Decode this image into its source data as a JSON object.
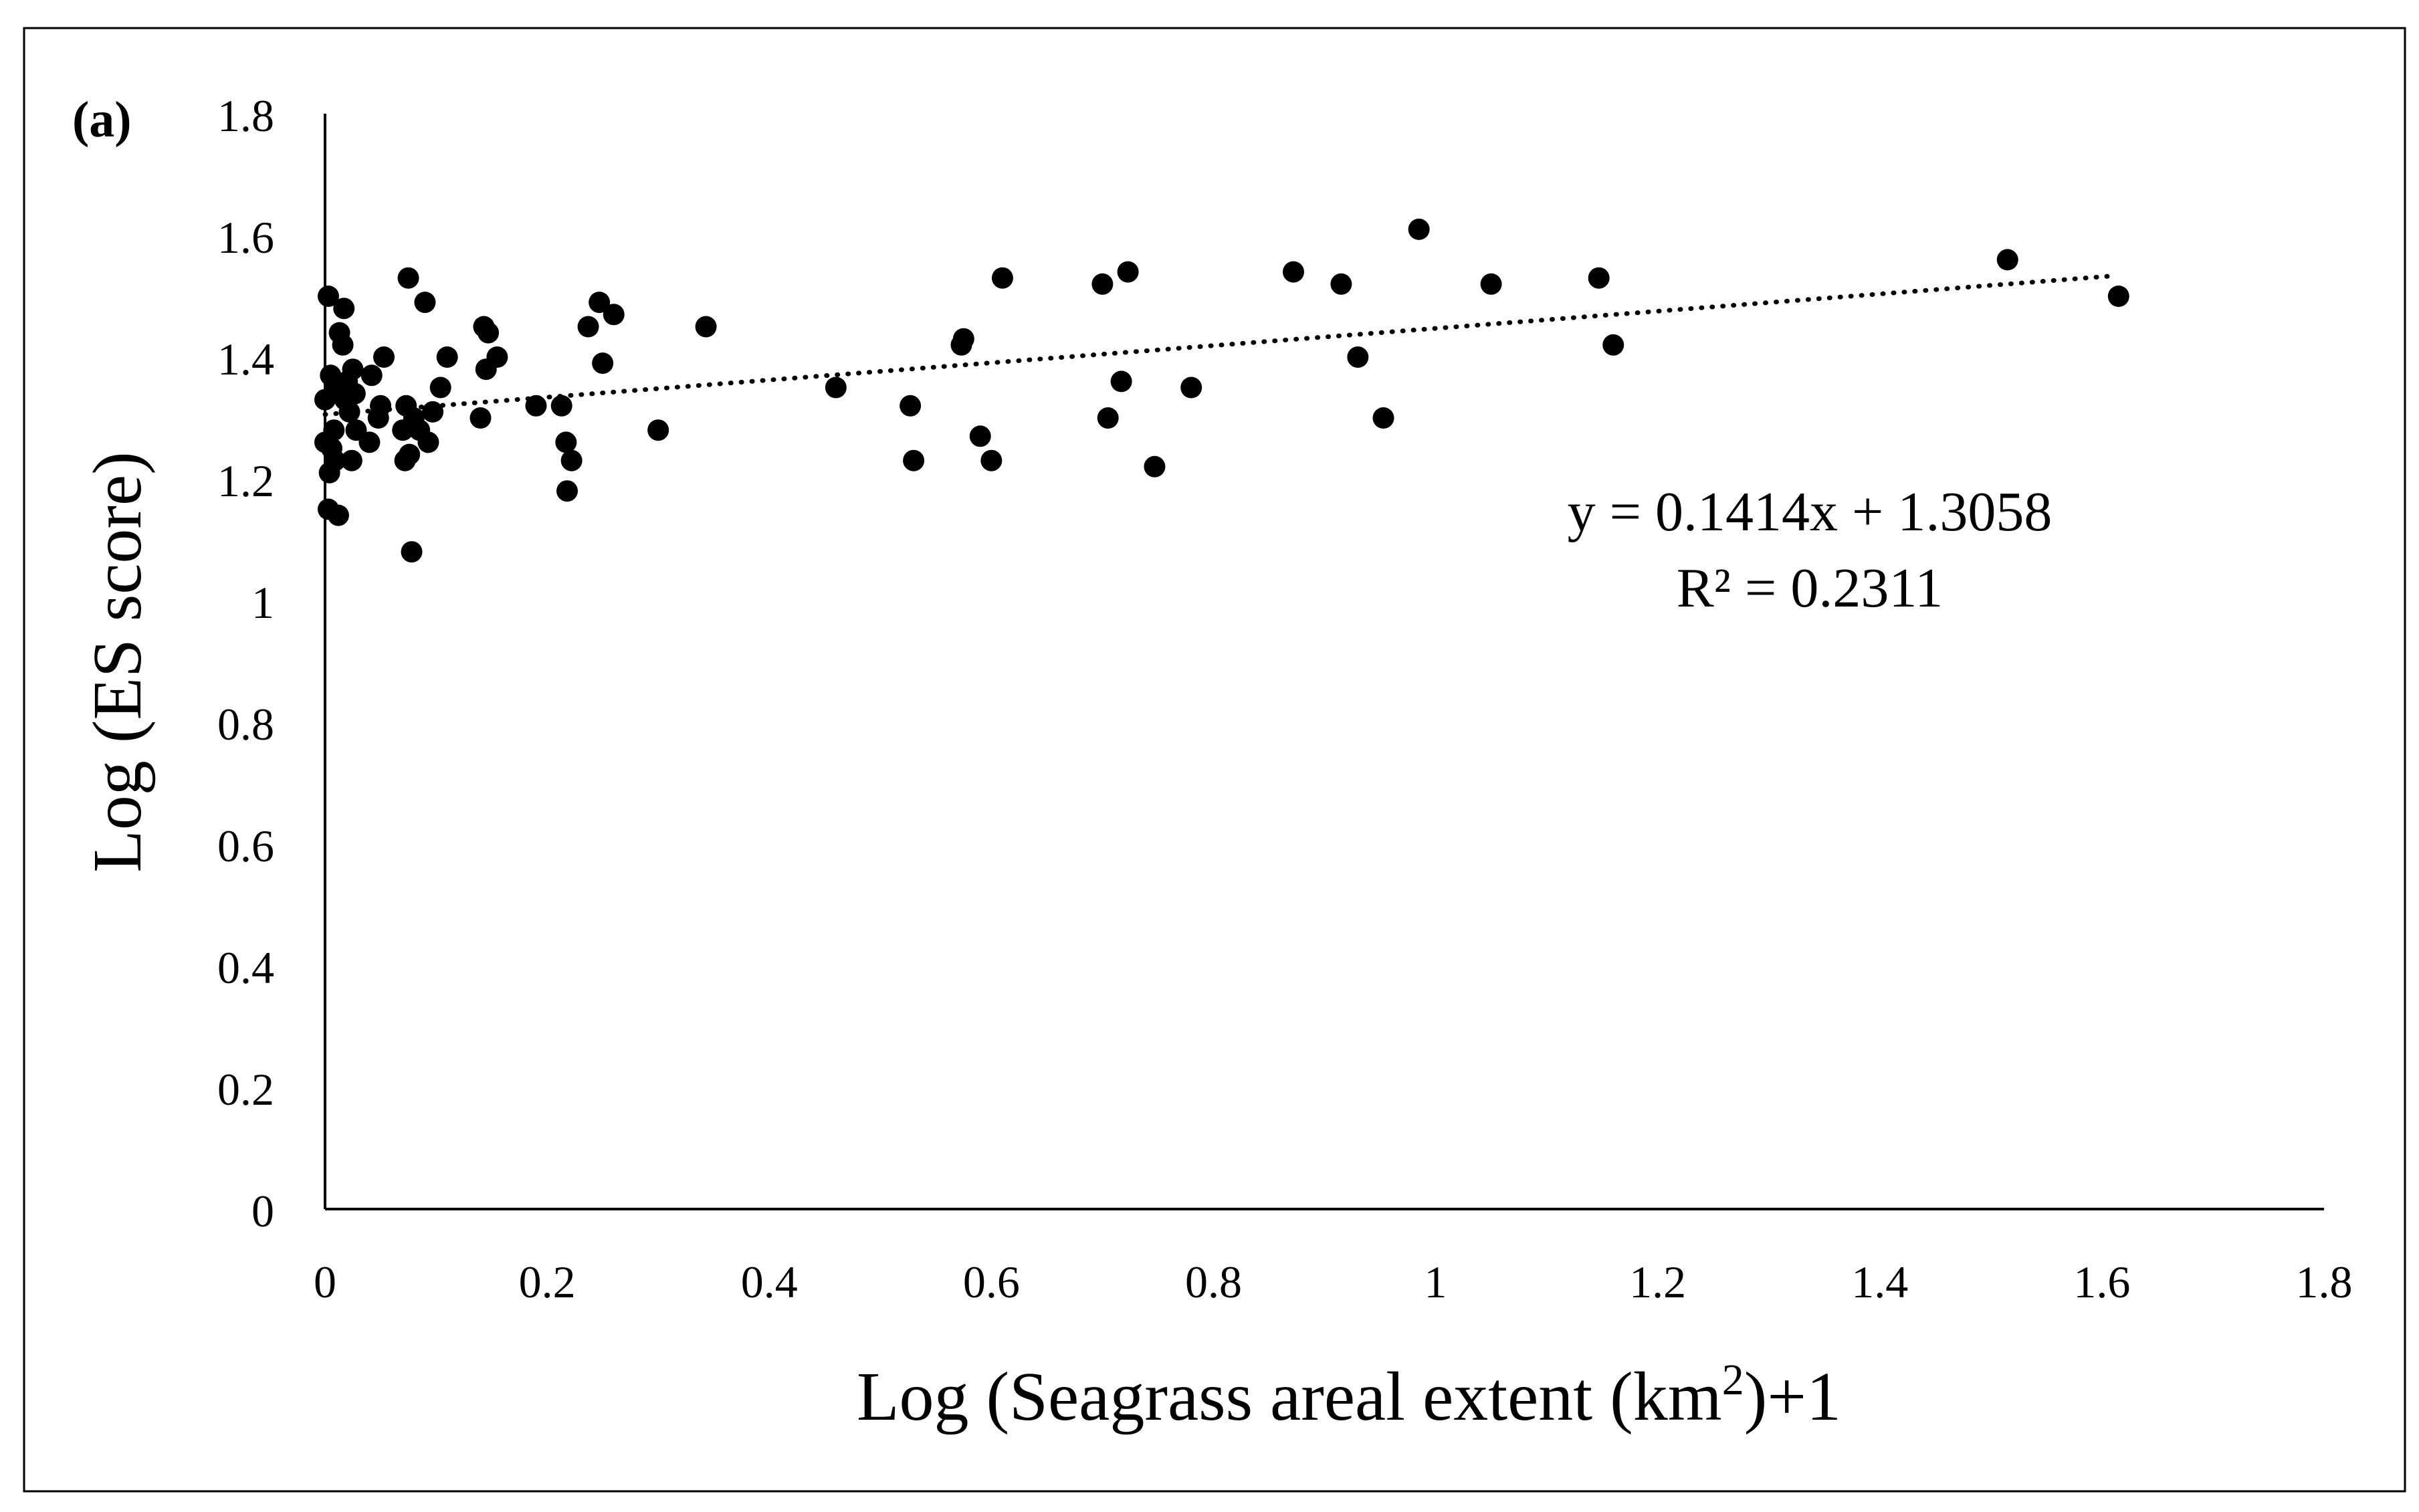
{
  "panel_label": "(a)",
  "chart_data": {
    "type": "scatter",
    "panel": "(a)",
    "xlabel_main": "Log (Seagrass areal extent (km",
    "xlabel_sup": "2",
    "xlabel_tail": ")+1",
    "ylabel": "Log (ES score)",
    "xlim": [
      0,
      1.8
    ],
    "ylim": [
      0,
      1.8
    ],
    "x_ticks": [
      {
        "value": 0,
        "label": "0"
      },
      {
        "value": 0.2,
        "label": "0.2"
      },
      {
        "value": 0.4,
        "label": "0.4"
      },
      {
        "value": 0.6,
        "label": "0.6"
      },
      {
        "value": 0.8,
        "label": "0.8"
      },
      {
        "value": 1.0,
        "label": "1"
      },
      {
        "value": 1.2,
        "label": "1.2"
      },
      {
        "value": 1.4,
        "label": "1.4"
      },
      {
        "value": 1.6,
        "label": "1.6"
      },
      {
        "value": 1.8,
        "label": "1.8"
      }
    ],
    "y_ticks": [
      {
        "value": 0,
        "label": "0"
      },
      {
        "value": 0.2,
        "label": "0.2"
      },
      {
        "value": 0.4,
        "label": "0.4"
      },
      {
        "value": 0.6,
        "label": "0.6"
      },
      {
        "value": 0.8,
        "label": "0.8"
      },
      {
        "value": 1.0,
        "label": "1"
      },
      {
        "value": 1.2,
        "label": "1.2"
      },
      {
        "value": 1.4,
        "label": "1.4"
      },
      {
        "value": 1.6,
        "label": "1.6"
      },
      {
        "value": 1.8,
        "label": "1.8"
      }
    ],
    "grid": false,
    "trendline": {
      "style": "dotted",
      "slope": 0.1414,
      "intercept": 1.3058,
      "x_range": [
        0,
        1.61
      ],
      "equation": "y = 0.1414x + 1.3058",
      "r_squared": "R² = 0.2311"
    },
    "points": [
      {
        "x": 0.0,
        "y": 1.33
      },
      {
        "x": 0.0,
        "y": 1.26
      },
      {
        "x": 0.003,
        "y": 1.5
      },
      {
        "x": 0.003,
        "y": 1.15
      },
      {
        "x": 0.004,
        "y": 1.21
      },
      {
        "x": 0.005,
        "y": 1.37
      },
      {
        "x": 0.006,
        "y": 1.25
      },
      {
        "x": 0.008,
        "y": 1.28
      },
      {
        "x": 0.009,
        "y": 1.23
      },
      {
        "x": 0.01,
        "y": 1.35
      },
      {
        "x": 0.012,
        "y": 1.14
      },
      {
        "x": 0.013,
        "y": 1.44
      },
      {
        "x": 0.016,
        "y": 1.42
      },
      {
        "x": 0.017,
        "y": 1.48
      },
      {
        "x": 0.018,
        "y": 1.33
      },
      {
        "x": 0.02,
        "y": 1.36
      },
      {
        "x": 0.022,
        "y": 1.31
      },
      {
        "x": 0.024,
        "y": 1.23
      },
      {
        "x": 0.025,
        "y": 1.38
      },
      {
        "x": 0.027,
        "y": 1.34
      },
      {
        "x": 0.028,
        "y": 1.28
      },
      {
        "x": 0.04,
        "y": 1.26
      },
      {
        "x": 0.042,
        "y": 1.37
      },
      {
        "x": 0.048,
        "y": 1.3
      },
      {
        "x": 0.05,
        "y": 1.32
      },
      {
        "x": 0.053,
        "y": 1.4
      },
      {
        "x": 0.07,
        "y": 1.28
      },
      {
        "x": 0.072,
        "y": 1.23
      },
      {
        "x": 0.073,
        "y": 1.32
      },
      {
        "x": 0.075,
        "y": 1.53
      },
      {
        "x": 0.076,
        "y": 1.24
      },
      {
        "x": 0.078,
        "y": 1.08
      },
      {
        "x": 0.08,
        "y": 1.3
      },
      {
        "x": 0.085,
        "y": 1.28
      },
      {
        "x": 0.09,
        "y": 1.49
      },
      {
        "x": 0.093,
        "y": 1.26
      },
      {
        "x": 0.097,
        "y": 1.31
      },
      {
        "x": 0.104,
        "y": 1.35
      },
      {
        "x": 0.11,
        "y": 1.4
      },
      {
        "x": 0.14,
        "y": 1.3
      },
      {
        "x": 0.143,
        "y": 1.45
      },
      {
        "x": 0.145,
        "y": 1.38
      },
      {
        "x": 0.147,
        "y": 1.44
      },
      {
        "x": 0.155,
        "y": 1.4
      },
      {
        "x": 0.19,
        "y": 1.32
      },
      {
        "x": 0.213,
        "y": 1.32
      },
      {
        "x": 0.217,
        "y": 1.26
      },
      {
        "x": 0.218,
        "y": 1.18
      },
      {
        "x": 0.222,
        "y": 1.23
      },
      {
        "x": 0.237,
        "y": 1.45
      },
      {
        "x": 0.247,
        "y": 1.49
      },
      {
        "x": 0.25,
        "y": 1.39
      },
      {
        "x": 0.26,
        "y": 1.47
      },
      {
        "x": 0.3,
        "y": 1.28
      },
      {
        "x": 0.343,
        "y": 1.45
      },
      {
        "x": 0.46,
        "y": 1.35
      },
      {
        "x": 0.527,
        "y": 1.32
      },
      {
        "x": 0.53,
        "y": 1.23
      },
      {
        "x": 0.573,
        "y": 1.42
      },
      {
        "x": 0.575,
        "y": 1.43
      },
      {
        "x": 0.59,
        "y": 1.27
      },
      {
        "x": 0.6,
        "y": 1.23
      },
      {
        "x": 0.61,
        "y": 1.53
      },
      {
        "x": 0.7,
        "y": 1.52
      },
      {
        "x": 0.705,
        "y": 1.3
      },
      {
        "x": 0.717,
        "y": 1.36
      },
      {
        "x": 0.723,
        "y": 1.54
      },
      {
        "x": 0.747,
        "y": 1.22
      },
      {
        "x": 0.78,
        "y": 1.35
      },
      {
        "x": 0.872,
        "y": 1.54
      },
      {
        "x": 0.915,
        "y": 1.52
      },
      {
        "x": 0.93,
        "y": 1.4
      },
      {
        "x": 0.953,
        "y": 1.3
      },
      {
        "x": 0.985,
        "y": 1.61
      },
      {
        "x": 1.05,
        "y": 1.52
      },
      {
        "x": 1.147,
        "y": 1.53
      },
      {
        "x": 1.16,
        "y": 1.42
      },
      {
        "x": 1.515,
        "y": 1.56
      },
      {
        "x": 1.615,
        "y": 1.5
      }
    ]
  }
}
